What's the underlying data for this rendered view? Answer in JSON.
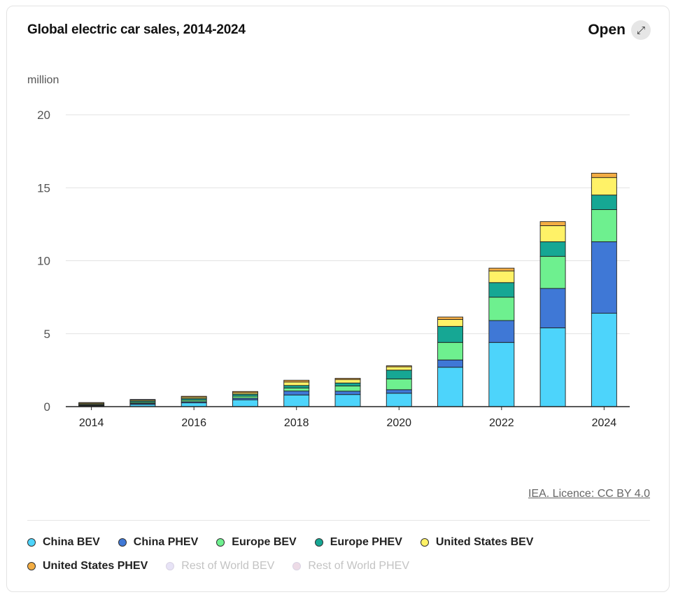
{
  "header": {
    "title": "Global electric car sales, 2014-2024",
    "open_label": "Open",
    "open_icon": "expand-arrow-icon"
  },
  "chart_data": {
    "type": "bar",
    "stacked": true,
    "title": "Global electric car sales, 2014-2024",
    "ylabel": "million",
    "xlabel": "",
    "ylim": [
      0,
      20
    ],
    "yticks": [
      0,
      5,
      10,
      15,
      20
    ],
    "xticks": [
      "2014",
      "2016",
      "2018",
      "2020",
      "2022",
      "2024"
    ],
    "grid": true,
    "categories": [
      "2014",
      "2015",
      "2016",
      "2017",
      "2018",
      "2019",
      "2020",
      "2021",
      "2022",
      "2023",
      "2024"
    ],
    "series": [
      {
        "name": "China BEV",
        "color": "#4dd4fb",
        "values": [
          0.05,
          0.15,
          0.26,
          0.47,
          0.8,
          0.83,
          0.92,
          2.7,
          4.4,
          5.4,
          6.4
        ]
      },
      {
        "name": "China PHEV",
        "color": "#3f78d6",
        "values": [
          0.02,
          0.07,
          0.08,
          0.11,
          0.27,
          0.23,
          0.24,
          0.5,
          1.5,
          2.7,
          4.9
        ]
      },
      {
        "name": "Europe BEV",
        "color": "#6ef08f",
        "values": [
          0.04,
          0.07,
          0.11,
          0.14,
          0.21,
          0.36,
          0.74,
          1.2,
          1.6,
          2.2,
          2.2
        ]
      },
      {
        "name": "Europe PHEV",
        "color": "#16a794",
        "values": [
          0.05,
          0.09,
          0.1,
          0.13,
          0.17,
          0.2,
          0.6,
          1.1,
          1.0,
          1.0,
          1.0
        ]
      },
      {
        "name": "United States BEV",
        "color": "#fff267",
        "values": [
          0.07,
          0.07,
          0.09,
          0.1,
          0.24,
          0.24,
          0.23,
          0.47,
          0.8,
          1.1,
          1.2
        ]
      },
      {
        "name": "United States PHEV",
        "color": "#f3ad43",
        "values": [
          0.05,
          0.04,
          0.07,
          0.09,
          0.12,
          0.08,
          0.07,
          0.17,
          0.19,
          0.28,
          0.3
        ]
      }
    ],
    "hidden_series": [
      {
        "name": "Rest of World BEV",
        "color": "#e7e3f6"
      },
      {
        "name": "Rest of World PHEV",
        "color": "#eddbe6"
      }
    ]
  },
  "footer": {
    "source": "IEA. Licence: CC BY 4.0"
  }
}
